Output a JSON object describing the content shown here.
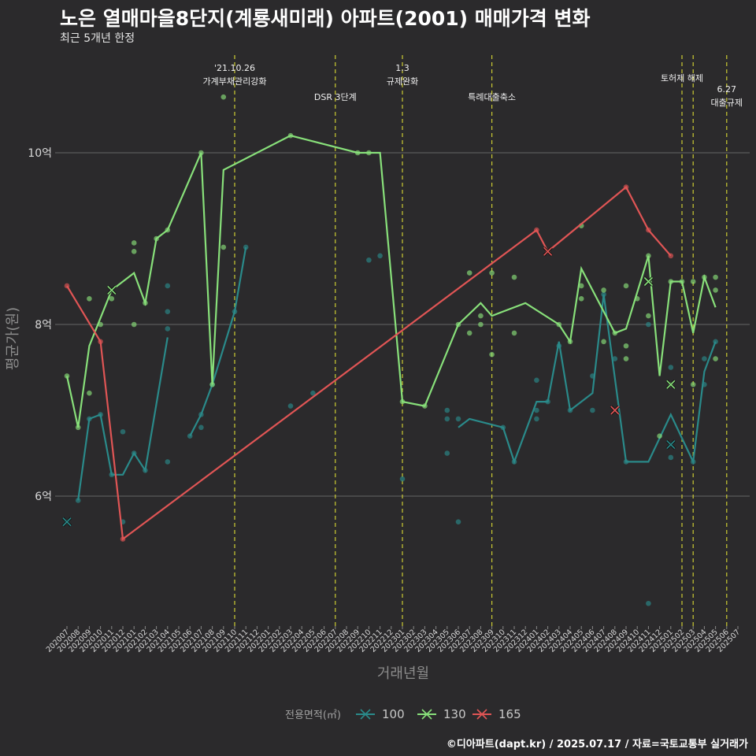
{
  "title": "노은 열매마을8단지(계룡새미래) 아파트(2001) 매매가격 변화",
  "subtitle": "최근 5개년 한정",
  "caption": "©디아파트(dapt.kr) / 2025.07.17 / 자료=국토교통부 실거래가",
  "chart_data": {
    "type": "line",
    "xlabel": "거래년월",
    "ylabel": "평균가(원)",
    "ylim": [
      4.5,
      11.2
    ],
    "y_ticks": [
      {
        "value": 6,
        "label": "6억"
      },
      {
        "value": 8,
        "label": "8억"
      },
      {
        "value": 10,
        "label": "10억"
      }
    ],
    "x_labels": [
      "202007",
      "202008",
      "202009",
      "202010",
      "202011",
      "202012",
      "202101",
      "202102",
      "202103",
      "202104",
      "202105",
      "202106",
      "202107",
      "202108",
      "202109",
      "202110",
      "202111",
      "202112",
      "202201",
      "202202",
      "202203",
      "202204",
      "202205",
      "202206",
      "202207",
      "202208",
      "202209",
      "202210",
      "202211",
      "202212",
      "202301",
      "202302",
      "202303",
      "202304",
      "202305",
      "202306",
      "202307",
      "202308",
      "202309",
      "202310",
      "202311",
      "202312",
      "202401",
      "202402",
      "202403",
      "202404",
      "202405",
      "202406",
      "202407",
      "202408",
      "202409",
      "202410",
      "202411",
      "202412",
      "202501",
      "202502",
      "202503",
      "202504",
      "202505",
      "202506",
      "202507"
    ],
    "legend": {
      "title": "전용면적(㎡)",
      "position": "bottom"
    },
    "annotations": [
      {
        "x": "202110",
        "lines": [
          "'21.10.26",
          "가계부채관리강화"
        ]
      },
      {
        "x": "202207",
        "lines": [
          "DSR 3단계"
        ]
      },
      {
        "x": "202301",
        "lines": [
          "1.3",
          "규제완화"
        ]
      },
      {
        "x": "202309",
        "lines": [
          "특례대출축소"
        ]
      },
      {
        "x": "202502",
        "lines": [
          "토허제 해제"
        ]
      },
      {
        "x": "202503",
        "lines": []
      },
      {
        "x": "202506",
        "lines": [
          "6.27",
          "대출규제"
        ]
      }
    ],
    "series": [
      {
        "name": "100",
        "color": "#2a8a8a",
        "line": [
          [
            [
              0,
              5.7
            ]
          ],
          [
            [
              1,
              5.95
            ],
            [
              2,
              6.9
            ],
            [
              3,
              6.95
            ],
            [
              4,
              6.25
            ],
            [
              5,
              6.25
            ],
            [
              6,
              6.5
            ],
            [
              7,
              6.3
            ],
            [
              9,
              7.85
            ]
          ],
          [
            [
              11,
              6.7
            ],
            [
              12,
              6.95
            ],
            [
              13,
              7.3
            ],
            [
              15,
              8.15
            ],
            [
              16,
              8.9
            ]
          ],
          [
            [
              35,
              6.8
            ],
            [
              36,
              6.9
            ],
            [
              39,
              6.8
            ],
            [
              40,
              6.4
            ],
            [
              42,
              7.1
            ],
            [
              43,
              7.1
            ],
            [
              44,
              7.8
            ],
            [
              45,
              7.0
            ],
            [
              47,
              7.2
            ],
            [
              48,
              8.35
            ],
            [
              50,
              6.4
            ],
            [
              52,
              6.4
            ],
            [
              54,
              6.95
            ],
            [
              56,
              6.4
            ],
            [
              57,
              7.45
            ],
            [
              58,
              7.8
            ]
          ]
        ],
        "points": [
          [
            0,
            5.7
          ],
          [
            1,
            5.95
          ],
          [
            2,
            6.9
          ],
          [
            3,
            6.95
          ],
          [
            4,
            6.25
          ],
          [
            5,
            6.75
          ],
          [
            5,
            5.7
          ],
          [
            6,
            6.5
          ],
          [
            7,
            6.3
          ],
          [
            9,
            8.45
          ],
          [
            9,
            8.15
          ],
          [
            9,
            7.95
          ],
          [
            9,
            6.4
          ],
          [
            11,
            6.7
          ],
          [
            12,
            6.95
          ],
          [
            12,
            6.8
          ],
          [
            13,
            7.3
          ],
          [
            15,
            8.15
          ],
          [
            16,
            8.9
          ],
          [
            20,
            7.05
          ],
          [
            22,
            7.2
          ],
          [
            27,
            8.75
          ],
          [
            28,
            8.8
          ],
          [
            30,
            6.2
          ],
          [
            34,
            7.0
          ],
          [
            34,
            6.9
          ],
          [
            34,
            6.5
          ],
          [
            35,
            5.7
          ],
          [
            35,
            6.9
          ],
          [
            39,
            6.8
          ],
          [
            40,
            6.4
          ],
          [
            42,
            7.35
          ],
          [
            42,
            7.0
          ],
          [
            42,
            6.9
          ],
          [
            43,
            7.1
          ],
          [
            44,
            7.75
          ],
          [
            45,
            7.0
          ],
          [
            47,
            7.4
          ],
          [
            47,
            7.0
          ],
          [
            48,
            8.35
          ],
          [
            49,
            7.6
          ],
          [
            50,
            6.4
          ],
          [
            52,
            8.0
          ],
          [
            52,
            4.75
          ],
          [
            54,
            7.5
          ],
          [
            54,
            6.6
          ],
          [
            54,
            6.45
          ],
          [
            56,
            6.4
          ],
          [
            57,
            7.3
          ],
          [
            57,
            7.6
          ],
          [
            58,
            7.8
          ]
        ],
        "cross": [
          [
            0,
            5.7
          ],
          [
            54,
            6.6
          ]
        ]
      },
      {
        "name": "130",
        "color": "#88e07a",
        "line": [
          [
            [
              0,
              7.4
            ],
            [
              1,
              6.8
            ],
            [
              2,
              7.75
            ],
            [
              4,
              8.4
            ],
            [
              6,
              8.6
            ],
            [
              7,
              8.25
            ],
            [
              8,
              9.0
            ],
            [
              9,
              9.1
            ],
            [
              12,
              10.0
            ],
            [
              13,
              7.3
            ],
            [
              14,
              9.8
            ],
            [
              20,
              10.2
            ],
            [
              26,
              10.0
            ],
            [
              28,
              10.0
            ],
            [
              30,
              7.1
            ],
            [
              32,
              7.05
            ],
            [
              35,
              8.0
            ],
            [
              37,
              8.25
            ],
            [
              38,
              8.1
            ],
            [
              39,
              8.15
            ],
            [
              41,
              8.25
            ],
            [
              44,
              8.0
            ],
            [
              45,
              7.8
            ],
            [
              46,
              8.65
            ],
            [
              48,
              8.15
            ],
            [
              49,
              7.9
            ],
            [
              50,
              7.95
            ],
            [
              52,
              8.8
            ],
            [
              53,
              7.4
            ],
            [
              54,
              8.5
            ],
            [
              55,
              8.5
            ],
            [
              56,
              7.9
            ],
            [
              57,
              8.55
            ],
            [
              58,
              8.2
            ]
          ]
        ],
        "points": [
          [
            0,
            7.4
          ],
          [
            1,
            6.8
          ],
          [
            2,
            8.3
          ],
          [
            2,
            7.2
          ],
          [
            3,
            8.0
          ],
          [
            4,
            8.3
          ],
          [
            6,
            8.95
          ],
          [
            6,
            8.85
          ],
          [
            6,
            8.0
          ],
          [
            7,
            8.25
          ],
          [
            8,
            9.0
          ],
          [
            9,
            9.1
          ],
          [
            12,
            10.0
          ],
          [
            13,
            7.3
          ],
          [
            14,
            10.65
          ],
          [
            14,
            8.9
          ],
          [
            20,
            10.2
          ],
          [
            26,
            10.0
          ],
          [
            27,
            10.0
          ],
          [
            30,
            7.1
          ],
          [
            32,
            7.05
          ],
          [
            35,
            8.0
          ],
          [
            36,
            7.9
          ],
          [
            36,
            8.6
          ],
          [
            37,
            8.0
          ],
          [
            37,
            8.1
          ],
          [
            38,
            8.6
          ],
          [
            38,
            7.65
          ],
          [
            40,
            8.55
          ],
          [
            40,
            7.9
          ],
          [
            44,
            8.0
          ],
          [
            45,
            7.8
          ],
          [
            46,
            9.15
          ],
          [
            46,
            8.45
          ],
          [
            46,
            8.3
          ],
          [
            48,
            7.8
          ],
          [
            48,
            8.4
          ],
          [
            49,
            7.9
          ],
          [
            50,
            8.45
          ],
          [
            50,
            7.75
          ],
          [
            50,
            7.6
          ],
          [
            51,
            8.3
          ],
          [
            52,
            8.8
          ],
          [
            52,
            8.1
          ],
          [
            53,
            6.7
          ],
          [
            54,
            8.5
          ],
          [
            54,
            7.3
          ],
          [
            55,
            8.5
          ],
          [
            56,
            8.5
          ],
          [
            56,
            7.3
          ],
          [
            57,
            8.55
          ],
          [
            58,
            8.55
          ],
          [
            58,
            8.4
          ],
          [
            58,
            7.6
          ]
        ],
        "cross": [
          [
            4,
            8.4
          ],
          [
            52,
            8.5
          ],
          [
            54,
            7.3
          ]
        ]
      },
      {
        "name": "165",
        "color": "#e05555",
        "line": [
          [
            [
              0,
              8.45
            ],
            [
              3,
              7.8
            ],
            [
              5,
              5.5
            ],
            [
              42,
              9.1
            ],
            [
              43,
              8.85
            ],
            [
              50,
              9.6
            ],
            [
              52,
              9.1
            ],
            [
              54,
              8.8
            ]
          ]
        ],
        "points": [
          [
            0,
            8.45
          ],
          [
            3,
            7.8
          ],
          [
            5,
            5.5
          ],
          [
            42,
            9.1
          ],
          [
            43,
            8.85
          ],
          [
            50,
            9.6
          ],
          [
            52,
            9.1
          ],
          [
            54,
            8.8
          ]
        ],
        "cross": [
          [
            43,
            8.85
          ],
          [
            49,
            7.0
          ]
        ]
      }
    ]
  }
}
